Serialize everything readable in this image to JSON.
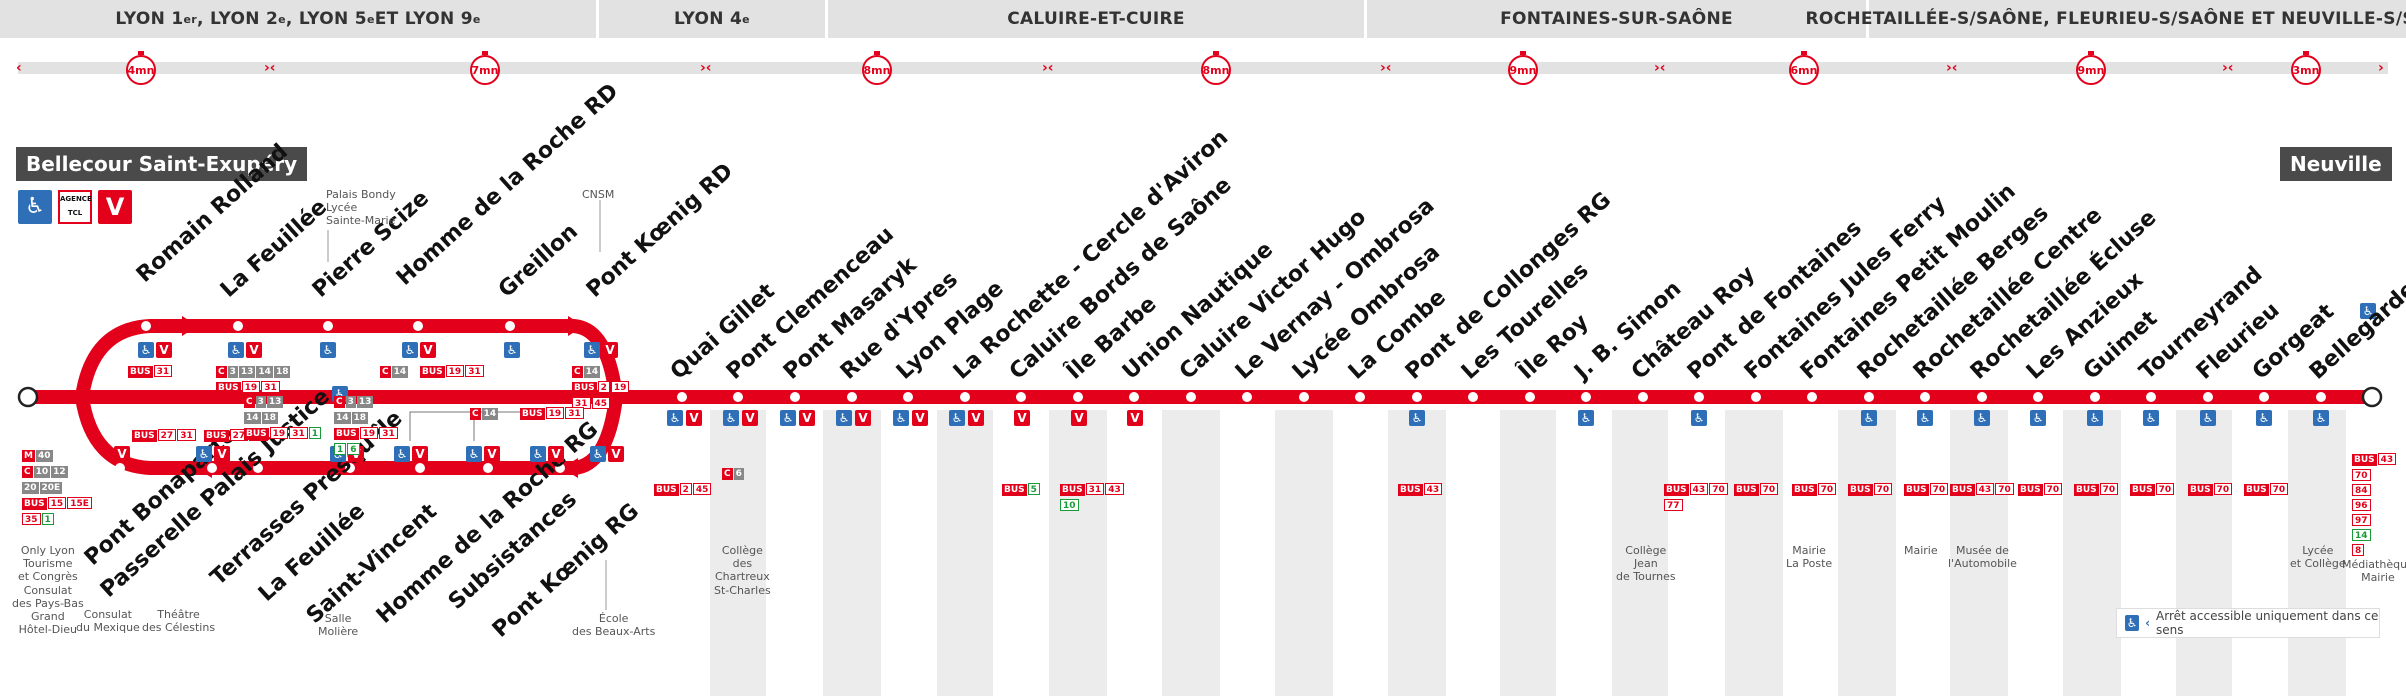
{
  "zones": [
    {
      "id": "z1",
      "label": "LYON 1er, LYON 2e, LYON 5e ET LYON 9e"
    },
    {
      "id": "z2",
      "label": "LYON 4e"
    },
    {
      "id": "z3",
      "label": "CALUIRE-ET-CUIRE"
    },
    {
      "id": "z4",
      "label": "FONTAINES-SUR-SAÔNE"
    },
    {
      "id": "z5",
      "label": "ROCHETAILLÉE-S/SAÔNE, FLEURIEU-S/SAÔNE ET NEUVILLE-S/SAÔNE"
    }
  ],
  "timers": [
    "4mn",
    "7mn",
    "8mn",
    "8mn",
    "9mn",
    "6mn",
    "9mn",
    "3mn"
  ],
  "terminus": {
    "start": "Bellecour Saint-Exupéry",
    "end": "Neuville"
  },
  "start_icons": {
    "access": "wheelchair-icon",
    "agence": "AGENCE TCL",
    "v": "V"
  },
  "loop_upper": [
    "Romain Rolland",
    "La Feuillée",
    "Pierre Scize",
    "Homme de la Roche RD",
    "Greillon",
    "Pont Kœnig RD"
  ],
  "loop_lower": [
    "Pont Bonaparte",
    "Passerelle Palais Justice",
    "Terrasses Presqu'île",
    "La Feuillée",
    "Saint-Vincent",
    "Homme de la Roche RG",
    "Subsistances",
    "Pont Kœnig RG"
  ],
  "main_stops": [
    "Quai Gillet",
    "Pont Clemenceau",
    "Pont Masaryk",
    "Rue d'Ypres",
    "Lyon Plage",
    "La Rochette - Cercle d'Aviron",
    "Caluire Bords de Saône",
    "Île Barbe",
    "Union Nautique",
    "Caluire Victor Hugo",
    "Le Vernay - Ombrosa",
    "Lycée Ombrosa",
    "La Combe",
    "Pont de Collonges RG",
    "Les Tourelles",
    "Île Roy",
    "J. B. Simon",
    "Château Roy",
    "Pont de Fontaines",
    "Fontaines Jules Ferry",
    "Fontaines Petit Moulin",
    "Rochetaillée Berges",
    "Rochetaillée Centre",
    "Rochetaillée Écluse",
    "Les Anzieux",
    "Guimet",
    "Tourneyrand",
    "Fleurieu",
    "Gorgeat",
    "Bellegarde"
  ],
  "notes": {
    "palais_bondy": "Palais Bondy",
    "lycee": "Lycée",
    "sainte_marie": "Sainte-Marie",
    "cnsm": "CNSM",
    "only_lyon": "Only Lyon",
    "tourisme": "Tourisme",
    "congres": "et Congrès",
    "consulat_pb": "Consulat",
    "pays_bas": "des Pays-Bas",
    "grand": "Grand",
    "hotel_dieu": "Hôtel-Dieu",
    "consulat_mx": "Consulat",
    "mexique": "du Mexique",
    "theatre": "Théâtre",
    "celestins": "des Célestins",
    "salle": "Salle",
    "moliere": "Molière",
    "ecole": "École",
    "beaux_arts": "des Beaux-Arts",
    "college_ch1": "Collège",
    "college_ch2": "des",
    "college_ch3": "Chartreux",
    "college_ch4": "St-Charles",
    "college_jt1": "Collège",
    "college_jt2": "Jean",
    "college_jt3": "de Tournes",
    "mairie_lp1": "Mairie",
    "mairie_lp2": "La Poste",
    "mairie": "Mairie",
    "musee1": "Musée de",
    "musee2": "l'Automobile",
    "lycee_college1": "Lycée",
    "lycee_college2": "et Collège",
    "mediatheque1": "Médiathèque",
    "mediatheque2": "Mairie"
  },
  "legend": "Arrêt accessible uniquement dans ce sens",
  "connections": {
    "c_bus": "BUS",
    "c_c": "C",
    "c_m": "M",
    "l31": "31",
    "l27": "27",
    "l19": "19",
    "l14": "14",
    "l2": "2",
    "l45": "45",
    "l3": "3",
    "l13": "13",
    "l18": "18",
    "l6": "6",
    "l43": "43",
    "l70": "70",
    "l77": "77",
    "l84": "84",
    "l96": "96",
    "l97": "97",
    "l10": "10",
    "l5": "5",
    "l20": "20",
    "l15": "15",
    "l15e": "15E",
    "l35": "35",
    "l1": "1",
    "l40": "40",
    "l20e": "20E",
    "l12": "12",
    "l8": "8",
    "l14b": "14"
  },
  "colors": {
    "red": "#e2001a",
    "blue": "#2f6fb7",
    "grey": "#e2e2e2",
    "dark": "#4a4a4a"
  }
}
